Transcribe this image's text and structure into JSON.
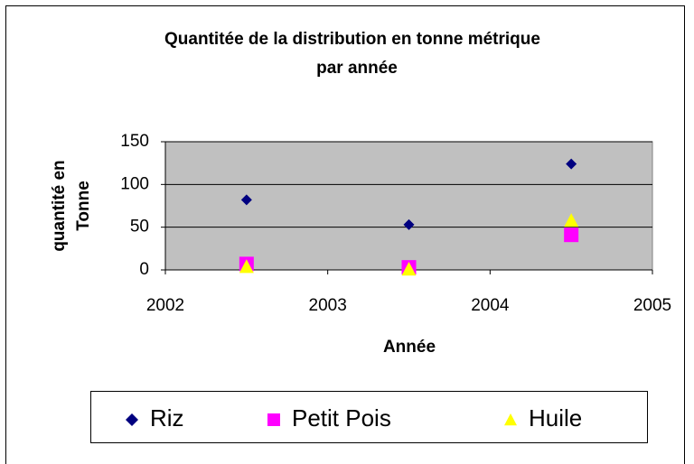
{
  "chart_data": {
    "type": "scatter",
    "title": [
      "Quantitée de la distribution en tonne métrique",
      "par année"
    ],
    "x_label": "Année",
    "y_label": [
      "quantité en",
      "Tonne"
    ],
    "x": [
      2002.5,
      2003.5,
      2004.5
    ],
    "series": [
      {
        "name": "Riz",
        "color": "#000080",
        "marker": "diamond",
        "values": [
          82,
          53,
          124
        ]
      },
      {
        "name": "Petit Pois",
        "color": "#ff00ff",
        "marker": "square",
        "values": [
          7,
          3,
          41
        ]
      },
      {
        "name": "Huile",
        "color": "#ffff00",
        "marker": "triangle",
        "values": [
          4,
          1,
          58
        ]
      }
    ],
    "xlim": [
      2002,
      2005
    ],
    "xticks": [
      2002,
      2003,
      2004,
      2005
    ],
    "ylim": [
      0,
      150
    ],
    "yticks": [
      0,
      50,
      100,
      150
    ],
    "grid": true,
    "legend": "bottom"
  }
}
